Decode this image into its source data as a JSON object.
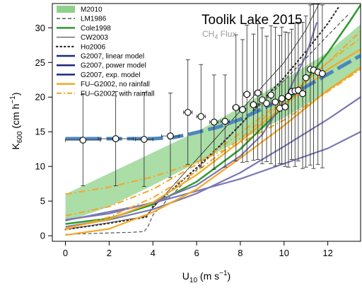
{
  "chart_data": {
    "type": "line",
    "title": "Toolik Lake 2015",
    "subtitle": "CH4 Flux",
    "subtitle_parts": {
      "base": "CH",
      "sub": "4",
      "rest": " Flux"
    },
    "xlabel": "U10 (m s-1)",
    "xlabel_parts": {
      "base": "U",
      "sub": "10",
      "rest": " (m s",
      "sup": "−1",
      "end": ")"
    },
    "ylabel": "K600 (cm h-1)",
    "ylabel_parts": {
      "base": "K",
      "sub": "600",
      "rest": " (cm h",
      "sup": "−1",
      "end": ")"
    },
    "xlim": [
      -0.6,
      13.5
    ],
    "ylim": [
      -0.8,
      33.5
    ],
    "x_ticks": [
      0,
      2,
      4,
      6,
      8,
      10,
      12
    ],
    "y_ticks": [
      0,
      5,
      10,
      15,
      20,
      25,
      30
    ],
    "x_tick_labels": [
      "0",
      "2",
      "4",
      "6",
      "8",
      "10",
      "12"
    ],
    "y_tick_labels": [
      "0",
      "5",
      "10",
      "15",
      "20",
      "25",
      "30"
    ],
    "grid": false,
    "legend_position": "top-left",
    "legend": [
      {
        "label": "M2010",
        "style": "band",
        "color": "#8fd18a"
      },
      {
        "label": "LM1986",
        "style": "dashed",
        "color": "#222222"
      },
      {
        "label": "Cole1998",
        "style": "solid-thick",
        "color": "#2f9a2f"
      },
      {
        "label": "CW2003",
        "style": "solid-thin",
        "color": "#222222"
      },
      {
        "label": "Ho2006",
        "style": "dotted",
        "color": "#222222"
      },
      {
        "label": "G2007, linear model",
        "style": "solid-thick",
        "color": "#1d2a7a"
      },
      {
        "label": "G2007, power model",
        "style": "solid-thick",
        "color": "#1d2a7a"
      },
      {
        "label": "G2007, exp. model",
        "style": "solid-thick",
        "color": "#1d2a7a"
      },
      {
        "label": "FU–G2002, no rainfall",
        "style": "solid-thick",
        "color": "#f5a623"
      },
      {
        "label": "FU–G2002, with rainfall",
        "style": "dashdot",
        "color": "#f5a623"
      }
    ],
    "series": [
      {
        "name": "M2010",
        "kind": "band",
        "color": "#8fd18a",
        "x": [
          0,
          2,
          4,
          6,
          8,
          10,
          12,
          13.5
        ],
        "lower": [
          2.0,
          4.2,
          7.3,
          10.5,
          13.8,
          17.0,
          20.8,
          24.0
        ],
        "upper": [
          6.0,
          9.0,
          12.0,
          15.0,
          18.5,
          22.5,
          26.5,
          30.5
        ]
      },
      {
        "name": "LM1986",
        "kind": "line",
        "color": "#555555",
        "x": [
          0,
          1,
          2,
          3,
          3.6,
          3.8,
          4,
          5,
          6,
          7,
          8,
          9,
          10,
          11,
          12,
          13
        ],
        "y": [
          0.2,
          0.3,
          0.4,
          0.5,
          0.6,
          1.5,
          3.0,
          6.3,
          9.5,
          12.7,
          16.0,
          19.2,
          22.4,
          25.6,
          28.9,
          32.1
        ]
      },
      {
        "name": "Cole1998",
        "kind": "line",
        "color": "#2f9a2f",
        "x": [
          0,
          2,
          4,
          6,
          8,
          10,
          11,
          12,
          13,
          13.5
        ],
        "y": [
          1.7,
          2.5,
          4.5,
          7.8,
          12.5,
          18.7,
          22.4,
          26.4,
          30.9,
          33.3
        ]
      },
      {
        "name": "CW2003",
        "kind": "line",
        "color": "#333333",
        "x": [
          0,
          2,
          3.7,
          4,
          6,
          8,
          10,
          11,
          11.6
        ],
        "y": [
          0.9,
          1.9,
          2.8,
          4.0,
          11.0,
          18.0,
          25.0,
          29.7,
          33.5
        ]
      },
      {
        "name": "Ho2006",
        "kind": "line",
        "color": "#333333",
        "x": [
          0,
          2,
          3.7,
          4,
          5,
          6,
          7,
          8,
          9,
          10,
          11,
          12,
          12.5
        ],
        "y": [
          0.9,
          1.8,
          2.7,
          4.2,
          7.0,
          9.8,
          12.8,
          16.0,
          19.5,
          22.8,
          26.6,
          30.6,
          33.0
        ]
      },
      {
        "name": "G2007, linear model",
        "kind": "line",
        "color": "#7a78b2",
        "x": [
          0,
          4,
          8,
          12,
          13.5
        ],
        "y": [
          2.2,
          4.7,
          8.2,
          12.6,
          15.0
        ]
      },
      {
        "name": "G2007, power model",
        "kind": "line",
        "color": "#7a78b2",
        "x": [
          0,
          2,
          4,
          6,
          8,
          10,
          12,
          13.5
        ],
        "y": [
          1.3,
          2.3,
          3.8,
          6.1,
          9.1,
          12.9,
          16.8,
          20.0
        ]
      },
      {
        "name": "G2007, exp. model",
        "kind": "line",
        "color": "#7a78b2",
        "x": [
          0,
          2,
          4,
          6,
          8,
          9,
          10,
          11,
          11.5
        ],
        "y": [
          2.3,
          3.2,
          4.8,
          7.3,
          11.5,
          14.6,
          19.5,
          26.0,
          30.8
        ]
      },
      {
        "name": "FU-G2002, no rainfall (lower)",
        "kind": "line",
        "color": "#f5a623",
        "x": [
          0,
          2,
          4,
          6,
          8,
          10,
          12,
          13.5
        ],
        "y": [
          0.1,
          1.0,
          3.4,
          6.7,
          11.2,
          15.9,
          21.0,
          24.3
        ]
      },
      {
        "name": "FU-G2002, no rainfall (upper)",
        "kind": "line",
        "color": "#f5a623",
        "x": [
          0,
          2,
          4,
          6,
          8,
          10,
          12,
          13.5
        ],
        "y": [
          1.1,
          2.4,
          4.8,
          8.8,
          13.6,
          18.8,
          24.0,
          26.9
        ]
      },
      {
        "name": "FU-G2002, with rainfall (1)",
        "kind": "line",
        "color": "#f5a623",
        "x": [
          0,
          2,
          4,
          6,
          8,
          10,
          12,
          13.5
        ],
        "y": [
          6.0,
          7.0,
          8.5,
          10.6,
          13.4,
          16.7,
          20.8,
          24.0
        ]
      },
      {
        "name": "FU-G2002, with rainfall (2)",
        "kind": "line",
        "color": "#f5a623",
        "x": [
          0,
          2,
          4,
          6,
          8,
          10,
          12,
          13.5
        ],
        "y": [
          2.9,
          4.2,
          6.7,
          10.3,
          14.8,
          19.7,
          25.0,
          28.5
        ]
      },
      {
        "name": "FU-G2002, with rainfall (3)",
        "kind": "line",
        "color": "#f5a623",
        "x": [
          0,
          2,
          4,
          6,
          8,
          10,
          12,
          13.5
        ],
        "y": [
          0.9,
          2.7,
          5.5,
          9.3,
          14.0,
          19.5,
          25.0,
          29.5
        ]
      },
      {
        "name": "Observed fit",
        "kind": "line",
        "color": "#4b86c0",
        "x": [
          0,
          2,
          4,
          5,
          6,
          7,
          8,
          9,
          10,
          11,
          12,
          13.5
        ],
        "y": [
          14.0,
          14.0,
          14.0,
          14.2,
          14.9,
          15.7,
          16.8,
          18.3,
          19.8,
          21.5,
          23.3,
          26.0
        ]
      }
    ],
    "points": {
      "name": "Toolik Lake 2015 CH4 flux",
      "x": [
        0.8,
        2.3,
        3.6,
        4.8,
        5.6,
        6.2,
        6.8,
        7.3,
        7.8,
        8.1,
        8.3,
        8.6,
        8.8,
        9.0,
        9.2,
        9.4,
        9.6,
        9.8,
        9.9,
        10.05,
        10.2,
        10.35,
        10.5,
        10.65,
        10.85,
        11.0,
        11.2,
        11.35,
        11.55,
        11.75
      ],
      "y": [
        13.8,
        14.0,
        13.9,
        14.4,
        17.8,
        17.2,
        16.4,
        16.5,
        18.5,
        18.2,
        20.4,
        18.9,
        20.6,
        19.6,
        19.1,
        20.3,
        19.3,
        18.4,
        19.8,
        18.6,
        20.1,
        20.8,
        20.9,
        21.0,
        20.5,
        22.8,
        24.0,
        23.9,
        23.6,
        23.4
      ],
      "xerr": [
        0.8,
        0.8,
        0.4,
        0.4,
        0.2,
        0.2,
        0.2,
        0.2,
        0.15,
        0.15,
        0.15,
        0.15,
        0.15,
        0.1,
        0.1,
        0.1,
        0.1,
        0.1,
        0.1,
        0.1,
        0.1,
        0.1,
        0.1,
        0.1,
        0.1,
        0.1,
        0.1,
        0.1,
        0.1,
        0.1
      ],
      "yerr_low": [
        6.6,
        6.8,
        6.8,
        6.0,
        7.5,
        7.3,
        6.8,
        6.6,
        7.7,
        7.6,
        9.7,
        8.0,
        9.6,
        9.2,
        8.4,
        9.9,
        9.2,
        8.0,
        9.4,
        8.6,
        10.2,
        9.8,
        10.9,
        10.2,
        10.8,
        12.9,
        13.8,
        14.2,
        13.3,
        13.6
      ],
      "yerr_high": [
        6.6,
        6.8,
        6.8,
        6.2,
        7.6,
        7.5,
        6.8,
        6.7,
        10.5,
        10.1,
        10.0,
        10.2,
        10.0,
        10.4,
        9.7,
        10.0,
        10.8,
        10.5,
        10.3,
        10.8,
        9.2,
        9.0,
        9.8,
        9.8,
        10.3,
        8.9,
        9.3,
        9.5,
        9.8,
        9.9
      ]
    }
  }
}
